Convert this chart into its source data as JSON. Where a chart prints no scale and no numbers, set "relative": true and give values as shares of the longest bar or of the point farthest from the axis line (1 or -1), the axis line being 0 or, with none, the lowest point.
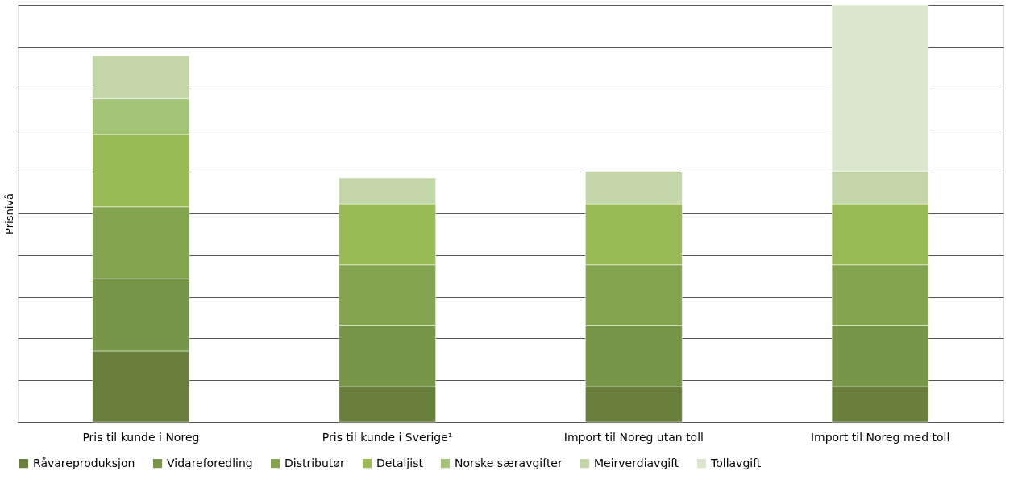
{
  "chart_data": {
    "type": "bar",
    "stacked": true,
    "relative": true,
    "ylabel": "Prisnivå",
    "categories": [
      "Pris til kunde i Noreg",
      "Pris til kunde i Sverige¹",
      "Import til Noreg utan toll",
      "Import til Noreg med toll"
    ],
    "series": [
      {
        "name": "Råvareproduksjon",
        "color": "#697f3c",
        "values": [
          0.17,
          0.085,
          0.085,
          0.085
        ]
      },
      {
        "name": "Vidareforedling",
        "color": "#789648",
        "values": [
          0.173,
          0.146,
          0.146,
          0.146
        ]
      },
      {
        "name": "Distributør",
        "color": "#84a44f",
        "values": [
          0.173,
          0.146,
          0.146,
          0.146
        ]
      },
      {
        "name": "Detaljist",
        "color": "#9aba55",
        "values": [
          0.173,
          0.146,
          0.146,
          0.146
        ]
      },
      {
        "name": "Norske særavgifter",
        "color": "#a4c576",
        "values": [
          0.086,
          null,
          null,
          null
        ]
      },
      {
        "name": "Meirverdiavgift",
        "color": "#c3d6a8",
        "values": [
          0.103,
          0.062,
          0.078,
          0.078
        ]
      },
      {
        "name": "Tollavgift",
        "color": "#dbe7cd",
        "values": [
          null,
          null,
          null,
          0.399
        ]
      }
    ],
    "grid": "y",
    "legend": "bottom"
  }
}
